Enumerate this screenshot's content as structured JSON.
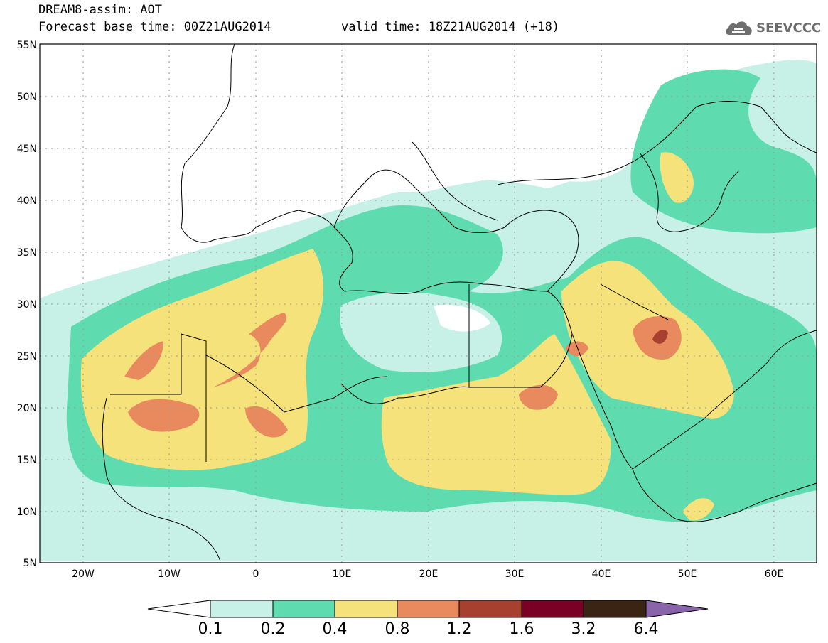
{
  "header": {
    "title_line1": "DREAM8-assim: AOT",
    "title_line2": "Forecast base time: 00Z21AUG2014",
    "valid_time": "valid time: 18Z21AUG2014 (+18)",
    "logo_text": "SEEVCCC",
    "logo_icon": "cloud-icon"
  },
  "map": {
    "lat_labels": [
      "55N",
      "50N",
      "45N",
      "40N",
      "35N",
      "30N",
      "25N",
      "20N",
      "15N",
      "10N",
      "5N"
    ],
    "lon_labels": [
      "20W",
      "10W",
      "0",
      "10E",
      "20E",
      "30E",
      "40E",
      "50E",
      "60E"
    ],
    "lat_range": [
      5,
      55
    ],
    "lon_range": [
      -25,
      65
    ]
  },
  "colorbar": {
    "labels": [
      "0.1",
      "0.2",
      "0.4",
      "0.8",
      "1.2",
      "1.6",
      "3.2",
      "6.4"
    ],
    "colors": [
      "#ffffff",
      "#c7f0e6",
      "#5edcb0",
      "#f5e27a",
      "#e88a5e",
      "#a84030",
      "#7a0025",
      "#3c2414",
      "#8a64a8"
    ]
  },
  "palette": {
    "c1": "#c7f0e6",
    "c2": "#5edcb0",
    "c3": "#f5e27a",
    "c4": "#e88a5e",
    "c5": "#a84030",
    "land": "#ffffff",
    "border": "#000000"
  }
}
